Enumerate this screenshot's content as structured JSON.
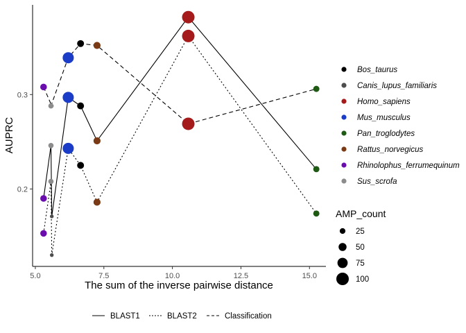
{
  "chart_data": {
    "type": "scatter",
    "xlabel": "The sum of the inverse pairwise distance",
    "ylabel": "AUPRC",
    "xlim": [
      4.9,
      15.6
    ],
    "ylim": [
      0.118,
      0.395
    ],
    "x_ticks": [
      {
        "value": 5.0,
        "label": "5.0"
      },
      {
        "value": 7.5,
        "label": "7.5"
      },
      {
        "value": 10.0,
        "label": "10.0"
      },
      {
        "value": 12.5,
        "label": "12.5"
      },
      {
        "value": 15.0,
        "label": "15.0"
      }
    ],
    "y_ticks": [
      {
        "value": 0.2,
        "label": "0.2"
      },
      {
        "value": 0.3,
        "label": "0.3"
      }
    ],
    "grid": false,
    "species": [
      {
        "name": "Bos_taurus",
        "color": "#000000",
        "x": 6.65,
        "amp_count": 38
      },
      {
        "name": "Canis_lupus_familiaris",
        "color": "#4d4d4d",
        "x": 5.6,
        "amp_count": 3
      },
      {
        "name": "Homo_sapiens",
        "color": "#a51b1b",
        "x": 10.58,
        "amp_count": 100
      },
      {
        "name": "Mus_musculus",
        "color": "#1a3cc7",
        "x": 6.2,
        "amp_count": 85
      },
      {
        "name": "Pan_troglodytes",
        "color": "#1f5a14",
        "x": 15.25,
        "amp_count": 30
      },
      {
        "name": "Rattus_norvegicus",
        "color": "#7a3a15",
        "x": 7.25,
        "amp_count": 40
      },
      {
        "name": "Rhinolophus_ferrumequinum",
        "color": "#6a0dad",
        "x": 5.3,
        "amp_count": 35
      },
      {
        "name": "Sus_scrofa",
        "color": "#8c8c8c",
        "x": 5.57,
        "amp_count": 20
      }
    ],
    "series": [
      {
        "name": "BLAST1",
        "linetype": "solid",
        "y": {
          "Rhinolophus_ferrumequinum": 0.19,
          "Sus_scrofa": 0.246,
          "Canis_lupus_familiaris": 0.171,
          "Mus_musculus": 0.297,
          "Bos_taurus": 0.288,
          "Rattus_norvegicus": 0.251,
          "Homo_sapiens": 0.382,
          "Pan_troglodytes": 0.221
        }
      },
      {
        "name": "BLAST2",
        "linetype": "dotted",
        "y": {
          "Rhinolophus_ferrumequinum": 0.153,
          "Sus_scrofa": 0.208,
          "Canis_lupus_familiaris": 0.13,
          "Mus_musculus": 0.243,
          "Bos_taurus": 0.225,
          "Rattus_norvegicus": 0.186,
          "Homo_sapiens": 0.362,
          "Pan_troglodytes": 0.174
        }
      },
      {
        "name": "Classification",
        "linetype": "dashed",
        "y": {
          "Rhinolophus_ferrumequinum": 0.308,
          "Canis_lupus_familiaris": 0.288,
          "Sus_scrofa": 0.288,
          "Mus_musculus": 0.339,
          "Bos_taurus": 0.354,
          "Rattus_norvegicus": 0.352,
          "Homo_sapiens": 0.269,
          "Pan_troglodytes": 0.306
        }
      }
    ],
    "size_legend": {
      "title": "AMP_count",
      "values": [
        25,
        50,
        75,
        100
      ]
    },
    "legend_position": "right",
    "linetype_legend_position": "bottom"
  }
}
